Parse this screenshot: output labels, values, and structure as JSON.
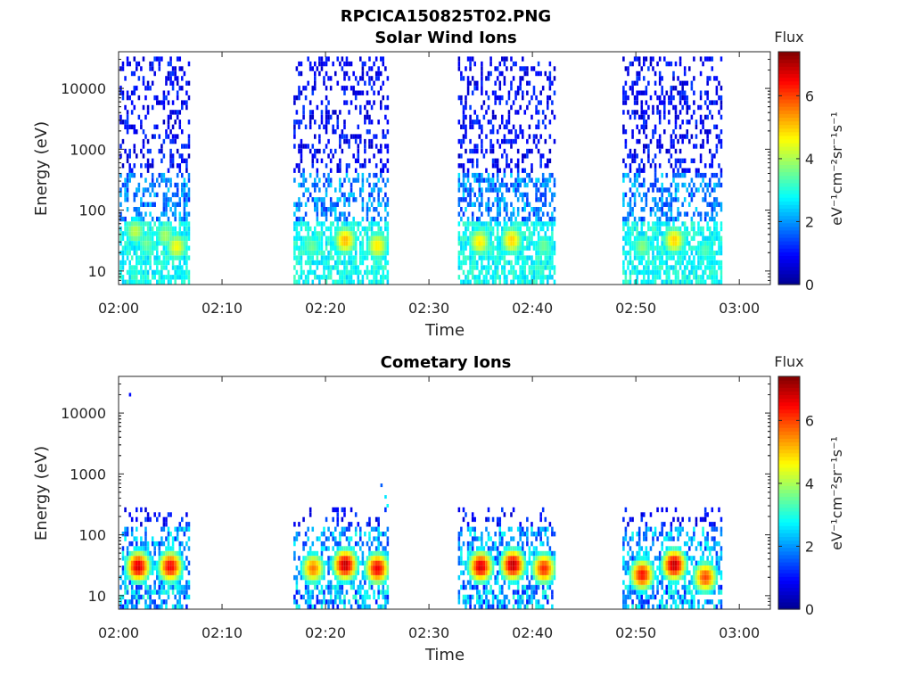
{
  "figure_title": "RPCICA150825T02.PNG",
  "colors": {
    "colormap": [
      "#00008f",
      "#0000ff",
      "#0080ff",
      "#00ffff",
      "#80ff80",
      "#ffff00",
      "#ff8000",
      "#ff0000",
      "#800000"
    ],
    "axis": "#262626",
    "background": "#ffffff"
  },
  "chart_data": [
    {
      "type": "heatmap",
      "title": "Solar Wind Ions",
      "xlabel": "Time",
      "ylabel": "Energy (eV)",
      "x_ticks": [
        "02:00",
        "02:10",
        "02:20",
        "02:30",
        "02:40",
        "02:50",
        "03:00"
      ],
      "x_range_minutes": [
        0,
        63
      ],
      "y_scale": "log",
      "y_ticks": [
        "10",
        "100",
        "1000",
        "10000"
      ],
      "y_range": [
        6,
        40000
      ],
      "colorbar": {
        "label": "Flux",
        "unit": "eV⁻¹cm⁻²sr⁻¹s⁻¹",
        "range": [
          0,
          7.4
        ],
        "ticks": [
          "0",
          "2",
          "4",
          "6"
        ]
      },
      "scan_intervals_minutes": [
        [
          0.1,
          6.9
        ],
        [
          16.9,
          26.0
        ],
        [
          32.8,
          42.2
        ],
        [
          48.7,
          58.3
        ]
      ],
      "peaks": [
        {
          "time_minutes": 1.5,
          "energy_eV": 45,
          "flux": 4.2
        },
        {
          "time_minutes": 2.6,
          "energy_eV": 28,
          "flux": 3.6
        },
        {
          "time_minutes": 4.4,
          "energy_eV": 38,
          "flux": 4.0
        },
        {
          "time_minutes": 5.5,
          "energy_eV": 25,
          "flux": 4.6
        },
        {
          "time_minutes": 18.6,
          "energy_eV": 25,
          "flux": 3.6
        },
        {
          "time_minutes": 21.8,
          "energy_eV": 32,
          "flux": 5.2
        },
        {
          "time_minutes": 24.9,
          "energy_eV": 26,
          "flux": 4.8
        },
        {
          "time_minutes": 34.8,
          "energy_eV": 30,
          "flux": 4.8
        },
        {
          "time_minutes": 37.9,
          "energy_eV": 32,
          "flux": 5.0
        },
        {
          "time_minutes": 41.0,
          "energy_eV": 26,
          "flux": 3.6
        },
        {
          "time_minutes": 50.5,
          "energy_eV": 25,
          "flux": 3.8
        },
        {
          "time_minutes": 53.6,
          "energy_eV": 32,
          "flux": 5.0
        },
        {
          "time_minutes": 56.6,
          "energy_eV": 22,
          "flux": 3.4
        }
      ]
    },
    {
      "type": "heatmap",
      "title": "Cometary Ions",
      "xlabel": "Time",
      "ylabel": "Energy (eV)",
      "x_ticks": [
        "02:00",
        "02:10",
        "02:20",
        "02:30",
        "02:40",
        "02:50",
        "03:00"
      ],
      "x_range_minutes": [
        0,
        63
      ],
      "y_scale": "log",
      "y_ticks": [
        "10",
        "100",
        "1000",
        "10000"
      ],
      "y_range": [
        6,
        40000
      ],
      "colorbar": {
        "label": "Flux",
        "unit": "eV⁻¹cm⁻²sr⁻¹s⁻¹",
        "range": [
          0,
          7.4
        ],
        "ticks": [
          "0",
          "2",
          "4",
          "6"
        ]
      },
      "scan_intervals_minutes": [
        [
          0.1,
          6.9
        ],
        [
          16.9,
          26.0
        ],
        [
          32.8,
          42.2
        ],
        [
          48.7,
          58.3
        ]
      ],
      "peaks": [
        {
          "time_minutes": 1.8,
          "energy_eV": 30,
          "flux": 6.8
        },
        {
          "time_minutes": 4.9,
          "energy_eV": 30,
          "flux": 6.6
        },
        {
          "time_minutes": 18.7,
          "energy_eV": 28,
          "flux": 5.6
        },
        {
          "time_minutes": 21.8,
          "energy_eV": 32,
          "flux": 7.0
        },
        {
          "time_minutes": 24.9,
          "energy_eV": 28,
          "flux": 6.6
        },
        {
          "time_minutes": 34.9,
          "energy_eV": 30,
          "flux": 6.8
        },
        {
          "time_minutes": 38.0,
          "energy_eV": 32,
          "flux": 7.0
        },
        {
          "time_minutes": 41.0,
          "energy_eV": 28,
          "flux": 6.2
        },
        {
          "time_minutes": 50.5,
          "energy_eV": 22,
          "flux": 6.4
        },
        {
          "time_minutes": 53.6,
          "energy_eV": 32,
          "flux": 7.0
        },
        {
          "time_minutes": 56.6,
          "energy_eV": 20,
          "flux": 6.0
        }
      ]
    }
  ]
}
